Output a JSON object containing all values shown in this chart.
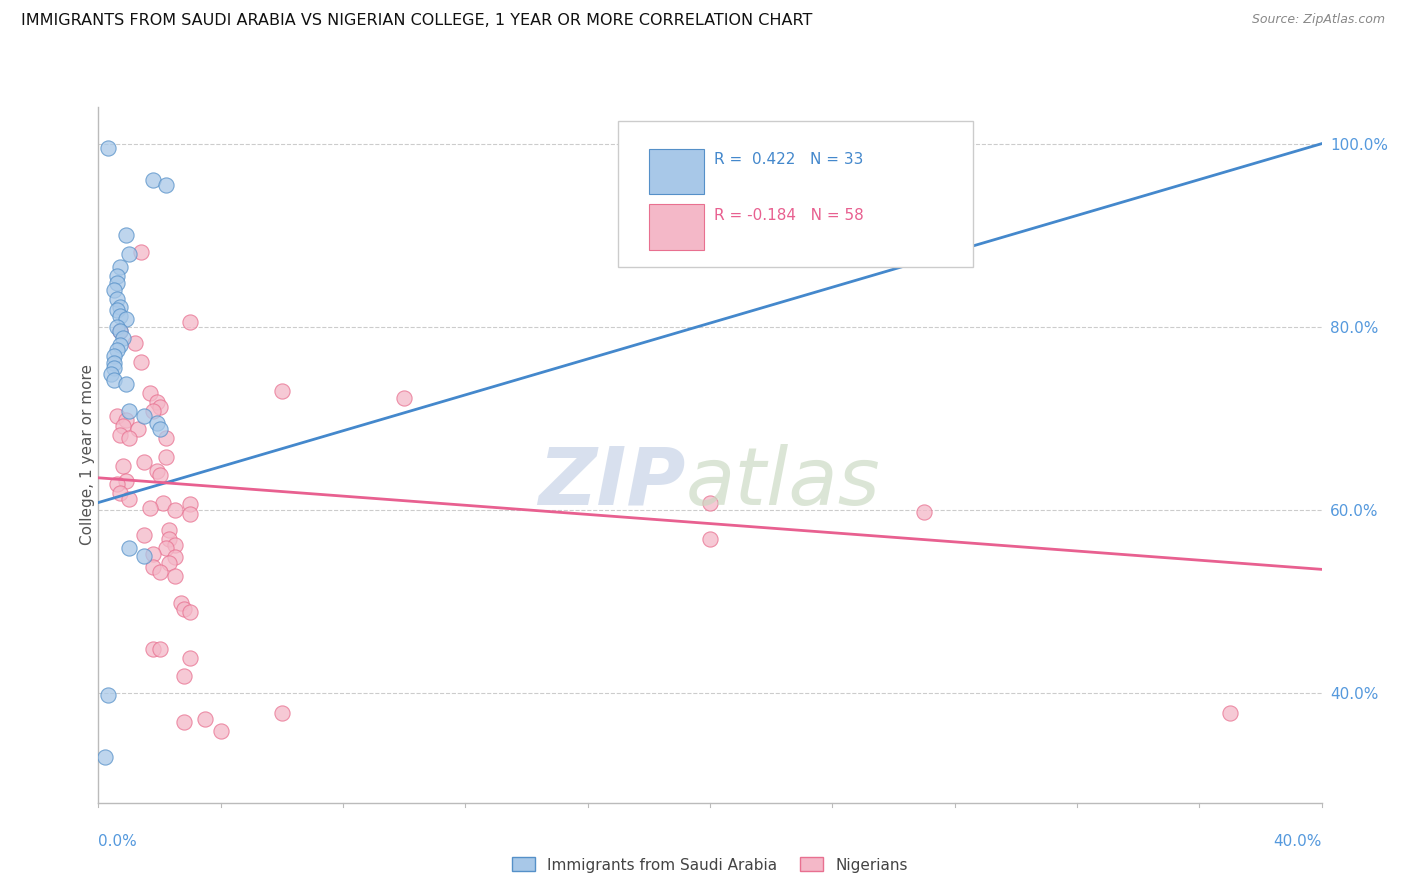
{
  "title": "IMMIGRANTS FROM SAUDI ARABIA VS NIGERIAN COLLEGE, 1 YEAR OR MORE CORRELATION CHART",
  "source": "Source: ZipAtlas.com",
  "ylabel": "College, 1 year or more",
  "legend_blue_label": "R =  0.422   N = 33",
  "legend_pink_label": "R = -0.184   N = 58",
  "legend_blue_sublabel": "Immigrants from Saudi Arabia",
  "legend_pink_sublabel": "Nigerians",
  "xlim": [
    0.0,
    0.4
  ],
  "ylim": [
    0.28,
    1.04
  ],
  "blue_color": "#a8c8e8",
  "pink_color": "#f4b8c8",
  "blue_edge_color": "#5590c8",
  "pink_edge_color": "#e87090",
  "blue_line_color": "#4488cc",
  "pink_line_color": "#e86090",
  "right_tick_color": "#5599dd",
  "bottom_tick_color": "#5599dd",
  "watermark_zip_color": "#c8d4e8",
  "watermark_atlas_color": "#c8d8c0",
  "blue_scatter": [
    [
      0.003,
      0.995
    ],
    [
      0.018,
      0.96
    ],
    [
      0.022,
      0.955
    ],
    [
      0.009,
      0.9
    ],
    [
      0.01,
      0.88
    ],
    [
      0.007,
      0.865
    ],
    [
      0.006,
      0.855
    ],
    [
      0.006,
      0.848
    ],
    [
      0.005,
      0.84
    ],
    [
      0.006,
      0.83
    ],
    [
      0.007,
      0.822
    ],
    [
      0.006,
      0.818
    ],
    [
      0.007,
      0.812
    ],
    [
      0.009,
      0.808
    ],
    [
      0.006,
      0.8
    ],
    [
      0.007,
      0.795
    ],
    [
      0.008,
      0.788
    ],
    [
      0.007,
      0.78
    ],
    [
      0.006,
      0.775
    ],
    [
      0.005,
      0.768
    ],
    [
      0.005,
      0.76
    ],
    [
      0.005,
      0.755
    ],
    [
      0.004,
      0.748
    ],
    [
      0.005,
      0.742
    ],
    [
      0.009,
      0.738
    ],
    [
      0.01,
      0.708
    ],
    [
      0.015,
      0.702
    ],
    [
      0.019,
      0.695
    ],
    [
      0.02,
      0.688
    ],
    [
      0.01,
      0.558
    ],
    [
      0.015,
      0.55
    ],
    [
      0.003,
      0.398
    ],
    [
      0.002,
      0.33
    ]
  ],
  "pink_scatter": [
    [
      0.014,
      0.882
    ],
    [
      0.03,
      0.805
    ],
    [
      0.007,
      0.795
    ],
    [
      0.012,
      0.782
    ],
    [
      0.014,
      0.762
    ],
    [
      0.06,
      0.73
    ],
    [
      0.1,
      0.722
    ],
    [
      0.017,
      0.728
    ],
    [
      0.019,
      0.718
    ],
    [
      0.02,
      0.712
    ],
    [
      0.018,
      0.708
    ],
    [
      0.006,
      0.702
    ],
    [
      0.009,
      0.698
    ],
    [
      0.008,
      0.692
    ],
    [
      0.013,
      0.688
    ],
    [
      0.007,
      0.682
    ],
    [
      0.01,
      0.678
    ],
    [
      0.022,
      0.678
    ],
    [
      0.022,
      0.658
    ],
    [
      0.015,
      0.652
    ],
    [
      0.008,
      0.648
    ],
    [
      0.019,
      0.642
    ],
    [
      0.02,
      0.638
    ],
    [
      0.009,
      0.632
    ],
    [
      0.006,
      0.628
    ],
    [
      0.007,
      0.618
    ],
    [
      0.01,
      0.612
    ],
    [
      0.021,
      0.608
    ],
    [
      0.03,
      0.606
    ],
    [
      0.017,
      0.602
    ],
    [
      0.025,
      0.6
    ],
    [
      0.03,
      0.595
    ],
    [
      0.2,
      0.608
    ],
    [
      0.2,
      0.568
    ],
    [
      0.27,
      0.598
    ],
    [
      0.023,
      0.578
    ],
    [
      0.015,
      0.572
    ],
    [
      0.023,
      0.568
    ],
    [
      0.025,
      0.562
    ],
    [
      0.022,
      0.558
    ],
    [
      0.018,
      0.552
    ],
    [
      0.025,
      0.548
    ],
    [
      0.023,
      0.542
    ],
    [
      0.018,
      0.538
    ],
    [
      0.02,
      0.532
    ],
    [
      0.025,
      0.528
    ],
    [
      0.027,
      0.498
    ],
    [
      0.028,
      0.492
    ],
    [
      0.03,
      0.488
    ],
    [
      0.018,
      0.448
    ],
    [
      0.02,
      0.448
    ],
    [
      0.03,
      0.438
    ],
    [
      0.028,
      0.418
    ],
    [
      0.028,
      0.368
    ],
    [
      0.035,
      0.372
    ],
    [
      0.06,
      0.378
    ],
    [
      0.37,
      0.378
    ],
    [
      0.04,
      0.358
    ]
  ],
  "blue_trendline": [
    [
      0.0,
      0.608
    ],
    [
      0.4,
      1.0
    ]
  ],
  "pink_trendline": [
    [
      0.0,
      0.635
    ],
    [
      0.4,
      0.535
    ]
  ]
}
